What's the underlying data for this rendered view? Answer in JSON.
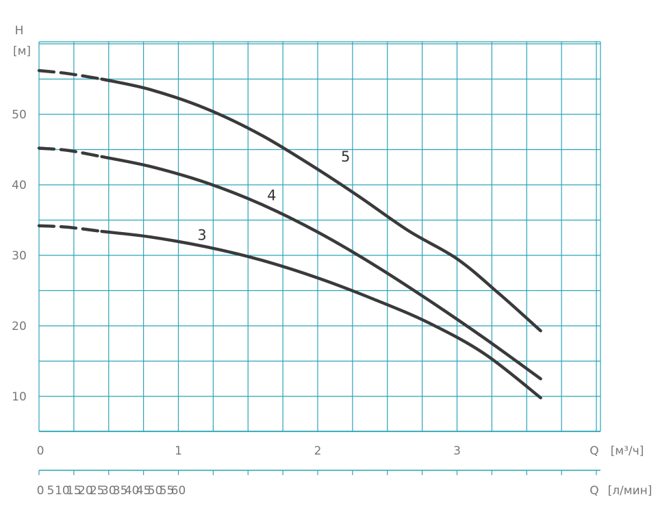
{
  "chart_data": {
    "type": "line",
    "ylabel_symbol": "H",
    "ylabel_unit": "[м]",
    "xlabel_top_symbol": "Q",
    "xlabel_top_unit": "[м³/ч]",
    "xlabel_bottom_symbol": "Q",
    "xlabel_bottom_unit": "[л/мин]",
    "y_ticks": [
      "10",
      "20",
      "30",
      "40",
      "50"
    ],
    "x_ticks_m3h": [
      "0",
      "1",
      "2",
      "3"
    ],
    "x_ticks_lmin": [
      "0",
      "5",
      "10",
      "15",
      "20",
      "25",
      "30",
      "35",
      "40",
      "45",
      "50",
      "55",
      "60"
    ],
    "ylim": [
      5,
      61
    ],
    "xlim_m3h": [
      0,
      4
    ],
    "grid": true,
    "grid_color": "#2aa3b8",
    "curve_color": "#3a3a3a",
    "series": [
      {
        "name": "3",
        "x_m3h": [
          0,
          0.2,
          0.45,
          0.8,
          1.2,
          1.6,
          2.0,
          2.4,
          2.8,
          3.2,
          3.6
        ],
        "y_m": [
          34.2,
          34.0,
          33.4,
          32.6,
          31.2,
          29.3,
          26.8,
          23.8,
          20.4,
          16.0,
          9.8
        ]
      },
      {
        "name": "4",
        "x_m3h": [
          0,
          0.2,
          0.45,
          0.8,
          1.2,
          1.6,
          2.0,
          2.4,
          2.8,
          3.2,
          3.6
        ],
        "y_m": [
          45.2,
          44.9,
          44.0,
          42.6,
          40.3,
          37.2,
          33.3,
          28.7,
          23.6,
          18.2,
          12.5
        ]
      },
      {
        "name": "5",
        "x_m3h": [
          0,
          0.2,
          0.45,
          0.8,
          1.2,
          1.6,
          2.0,
          2.3,
          2.65,
          3.0,
          3.3,
          3.6
        ],
        "y_m": [
          56.2,
          55.8,
          55.0,
          53.5,
          50.8,
          47.0,
          42.2,
          38.3,
          33.5,
          29.5,
          24.6,
          19.3
        ]
      }
    ],
    "dashed_until_m3h": 0.45
  }
}
